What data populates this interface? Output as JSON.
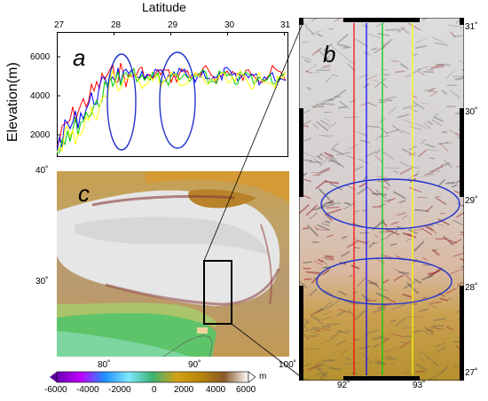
{
  "figure": {
    "panel_a": {
      "letter": "a",
      "x_axis_title": "Latitude",
      "y_axis_title": "Elevation(m)",
      "x_ticks": [
        "27",
        "28",
        "29",
        "30",
        "31"
      ],
      "y_ticks": [
        "6000",
        "4000",
        "2000"
      ],
      "profile_colors": [
        "#ff0000",
        "#0000ff",
        "#00cc00",
        "#ffff00"
      ],
      "highlight_color": "#2233cc"
    },
    "panel_b": {
      "letter": "b",
      "lat_ticks": [
        "31˚",
        "30˚",
        "29˚",
        "28˚",
        "27˚"
      ],
      "lon_ticks": [
        "92˚",
        "93˚"
      ],
      "profile_colors": [
        "#ff0000",
        "#0000ff",
        "#00cc00",
        "#ffff00"
      ]
    },
    "panel_c": {
      "letter": "c",
      "lat_ticks": [
        "40˚",
        "30˚"
      ],
      "lon_ticks": [
        "80˚",
        "90˚",
        "100˚"
      ]
    },
    "colorbar": {
      "ticks": [
        "-6000",
        "-4000",
        "-2000",
        "0",
        "2000",
        "4000",
        "6000"
      ],
      "unit": "m",
      "colors": [
        "#6a00b0",
        "#c000ff",
        "#1e90ff",
        "#7fe8ff",
        "#3cb371",
        "#d4a017",
        "#b8860b",
        "#8b5a2b",
        "#ffffff"
      ]
    }
  }
}
